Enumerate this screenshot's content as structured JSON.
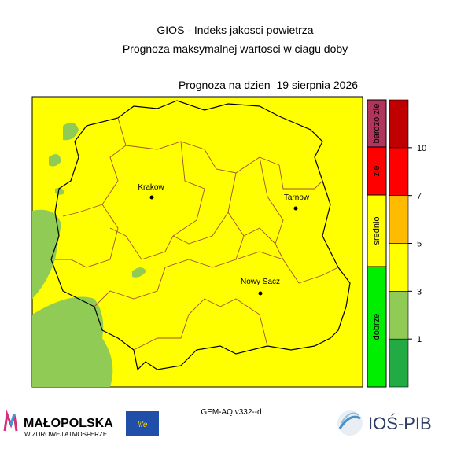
{
  "header": {
    "title": "GIOS - Indeks jakosci powietrza",
    "subtitle": "Prognoza maksymalnej wartosci w ciagu doby",
    "date_label": "Prognoza na dzien  19 sierpnia 2026"
  },
  "map": {
    "cities": [
      {
        "name": "Krakow"
      },
      {
        "name": "Tarnow"
      },
      {
        "name": "Nowy Sacz"
      }
    ]
  },
  "categories": [
    {
      "label": "bardzo zle",
      "color": "#b0345c"
    },
    {
      "label": "zle",
      "color": "#ff0000"
    },
    {
      "label": "srednio",
      "color": "#ffff00"
    },
    {
      "label": "dobrze",
      "color": "#00ee00"
    }
  ],
  "scale": {
    "colors": [
      "#22aa44",
      "#90cc55",
      "#ffff00",
      "#ffbb00",
      "#ff0000",
      "#c00000"
    ],
    "ticks": [
      1,
      3,
      5,
      7,
      10
    ]
  },
  "footer": {
    "model": "GEM-AQ v332--d",
    "logo_left": "MAŁOPOLSKA",
    "logo_left_sub": "W ZDROWEJ ATMOSFERZE",
    "eu_logo": "life",
    "logo_right": "IOŚ-PIB"
  }
}
